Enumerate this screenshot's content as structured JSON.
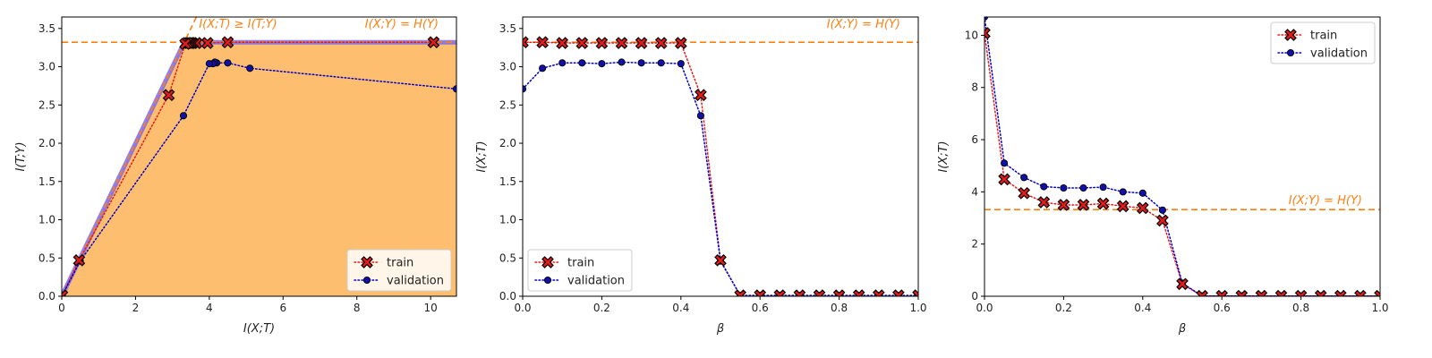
{
  "colors": {
    "train_line": "#e41a1c",
    "train_marker": "#e41a1c",
    "validation_line": "#0000cc",
    "validation_marker": "#1111aa",
    "hy_line": "#ff7f0e",
    "annotation": "#ff7f0e",
    "feasible_fill": "#fdbf6f",
    "frontier": "#7b68ee"
  },
  "chart_data": [
    {
      "type": "line",
      "panel": "info-plane",
      "xlabel": "I(X;T)",
      "ylabel": "I(T;Y)",
      "xlim": [
        0,
        10.7
      ],
      "ylim": [
        0,
        3.65
      ],
      "xticks": [
        "0",
        "2",
        "4",
        "6",
        "8",
        "10"
      ],
      "yticks": [
        "0.0",
        "0.5",
        "1.0",
        "1.5",
        "2.0",
        "2.5",
        "3.0",
        "3.5"
      ],
      "hy": 3.32,
      "hy_label": "I(X;Y) = H(Y)",
      "bound_label": "I(X;T) ≥ I(T;Y)",
      "legend_position": "lower right",
      "series": [
        {
          "name": "train",
          "x": [
            10.08,
            4.5,
            3.95,
            3.65,
            3.55,
            3.5,
            3.45,
            3.4,
            3.35,
            2.9,
            0.47,
            0.01
          ],
          "y": [
            3.32,
            3.32,
            3.31,
            3.31,
            3.31,
            3.31,
            3.31,
            3.31,
            3.3,
            2.63,
            0.47,
            0.01
          ]
        },
        {
          "name": "validation",
          "x": [
            10.7,
            5.1,
            4.5,
            4.2,
            4.15,
            4.1,
            4.0,
            3.3,
            0.5,
            0.01
          ],
          "y": [
            2.71,
            2.98,
            3.05,
            3.05,
            3.06,
            3.04,
            3.04,
            2.36,
            0.46,
            0.01
          ]
        }
      ]
    },
    {
      "type": "line",
      "panel": "beta-vs-ixt-zoom",
      "xlabel": "β",
      "ylabel": "I(X;T)",
      "xlim": [
        0,
        1.0
      ],
      "ylim": [
        0,
        3.65
      ],
      "xticks": [
        "0.0",
        "0.2",
        "0.4",
        "0.6",
        "0.8",
        "1.0"
      ],
      "yticks": [
        "0.0",
        "0.5",
        "1.0",
        "1.5",
        "2.0",
        "2.5",
        "3.0",
        "3.5"
      ],
      "hy": 3.32,
      "hy_label": "I(X;Y) = H(Y)",
      "legend_position": "lower left",
      "series": [
        {
          "name": "train",
          "x": [
            0.0,
            0.05,
            0.1,
            0.15,
            0.2,
            0.25,
            0.3,
            0.35,
            0.4,
            0.45,
            0.5,
            0.55,
            0.6,
            0.65,
            0.7,
            0.75,
            0.8,
            0.85,
            0.9,
            0.95,
            1.0
          ],
          "y": [
            3.32,
            3.32,
            3.31,
            3.31,
            3.31,
            3.31,
            3.31,
            3.31,
            3.31,
            2.63,
            0.47,
            0.01,
            0.01,
            0.01,
            0.01,
            0.01,
            0.01,
            0.01,
            0.01,
            0.01,
            0.01
          ]
        },
        {
          "name": "validation",
          "x": [
            0.0,
            0.05,
            0.1,
            0.15,
            0.2,
            0.25,
            0.3,
            0.35,
            0.4,
            0.45,
            0.5,
            0.55,
            0.6,
            0.65,
            0.7,
            0.75,
            0.8,
            0.85,
            0.9,
            0.95,
            1.0
          ],
          "y": [
            2.71,
            2.98,
            3.05,
            3.05,
            3.04,
            3.06,
            3.05,
            3.05,
            3.04,
            2.36,
            0.46,
            0.01,
            0.01,
            0.01,
            0.01,
            0.01,
            0.01,
            0.01,
            0.01,
            0.01,
            0.01
          ]
        }
      ]
    },
    {
      "type": "line",
      "panel": "beta-vs-ixt-full",
      "xlabel": "β",
      "ylabel": "I(X;T)",
      "xlim": [
        0,
        1.0
      ],
      "ylim": [
        0,
        10.7
      ],
      "xticks": [
        "0.0",
        "0.2",
        "0.4",
        "0.6",
        "0.8",
        "1.0"
      ],
      "yticks": [
        "0",
        "2",
        "4",
        "6",
        "8",
        "10"
      ],
      "hy": 3.32,
      "hy_label": "I(X;Y) = H(Y)",
      "legend_position": "upper right",
      "series": [
        {
          "name": "train",
          "x": [
            0.0,
            0.05,
            0.1,
            0.15,
            0.2,
            0.25,
            0.3,
            0.35,
            0.4,
            0.45,
            0.5,
            0.55,
            0.6,
            0.65,
            0.7,
            0.75,
            0.8,
            0.85,
            0.9,
            0.95,
            1.0
          ],
          "y": [
            10.08,
            4.48,
            3.95,
            3.6,
            3.5,
            3.5,
            3.55,
            3.45,
            3.38,
            2.9,
            0.47,
            0.01,
            0.01,
            0.01,
            0.01,
            0.01,
            0.01,
            0.01,
            0.01,
            0.01,
            0.01
          ]
        },
        {
          "name": "validation",
          "x": [
            0.0,
            0.05,
            0.1,
            0.15,
            0.2,
            0.25,
            0.3,
            0.35,
            0.4,
            0.45,
            0.5,
            0.55,
            0.6,
            0.65,
            0.7,
            0.75,
            0.8,
            0.85,
            0.9,
            0.95,
            1.0
          ],
          "y": [
            10.7,
            5.1,
            4.55,
            4.2,
            4.15,
            4.15,
            4.18,
            4.0,
            3.95,
            3.3,
            0.5,
            0.01,
            0.01,
            0.01,
            0.01,
            0.01,
            0.01,
            0.01,
            0.01,
            0.01,
            0.01
          ]
        }
      ]
    }
  ]
}
